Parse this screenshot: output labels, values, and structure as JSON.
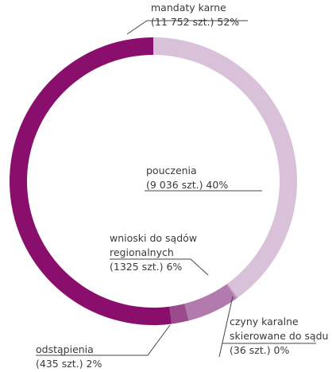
{
  "chart_data": {
    "type": "donut",
    "categories": [
      "pouczenia",
      "czyny karalne skierowane do sądu",
      "wnioski do sądów regionalnych",
      "odstąpienia",
      "mandaty karne"
    ],
    "values": [
      9036,
      36,
      1325,
      435,
      11752
    ],
    "value_labels": [
      "(9 036 szt.) 40%",
      "(36 szt.) 0%",
      "(1325 szt.) 6%",
      "(435 szt.) 2%",
      "(11 752 szt.) 52%"
    ],
    "colors": [
      "#d8c1d9",
      "#c79ac3",
      "#b37aad",
      "#9b4a8c",
      "#8a0f6c"
    ]
  }
}
